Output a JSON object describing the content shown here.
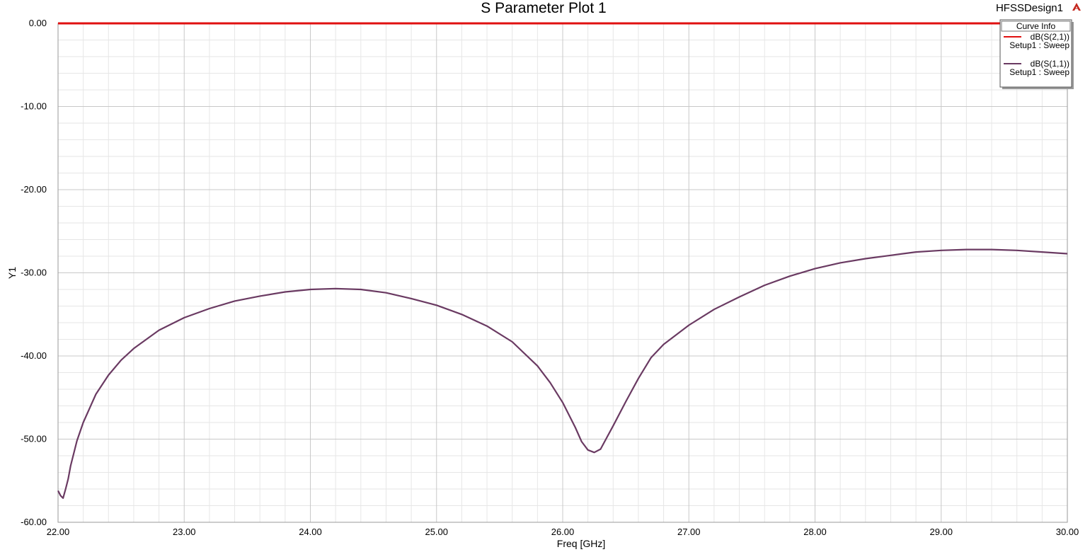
{
  "design_name": "HFSSDesign1",
  "logo_icon": "ansys-logo-icon",
  "colors": {
    "s21": "#e01010",
    "s11": "#6a3a62",
    "grid_major": "#c8c8c8",
    "grid_minor": "#e6e6e6"
  },
  "chart_data": {
    "type": "line",
    "title": "S Parameter Plot 1",
    "xlabel": "Freq [GHz]",
    "ylabel": "Y1",
    "xlim": [
      22.0,
      30.0
    ],
    "ylim": [
      -60.0,
      0.0
    ],
    "x_ticks": [
      "22.00",
      "23.00",
      "24.00",
      "25.00",
      "26.00",
      "27.00",
      "28.00",
      "29.00",
      "30.00"
    ],
    "y_ticks": [
      "0.00",
      "-10.00",
      "-20.00",
      "-30.00",
      "-40.00",
      "-50.00",
      "-60.00"
    ],
    "grid": true,
    "legend": {
      "title": "Curve Info",
      "placement": "top-right",
      "entries": [
        {
          "name": "dB(S(2,1))",
          "sub": "Setup1 : Sweep"
        },
        {
          "name": "dB(S(1,1))",
          "sub": "Setup1 : Sweep"
        }
      ]
    },
    "series": [
      {
        "name": "dB(S(2,1))",
        "x": [
          22.0,
          30.0
        ],
        "y": [
          0.0,
          0.0
        ]
      },
      {
        "name": "dB(S(1,1))",
        "x": [
          22.0,
          22.02,
          22.04,
          22.06,
          22.08,
          22.1,
          22.15,
          22.2,
          22.3,
          22.4,
          22.5,
          22.6,
          22.8,
          23.0,
          23.2,
          23.4,
          23.6,
          23.8,
          24.0,
          24.2,
          24.4,
          24.6,
          24.8,
          25.0,
          25.2,
          25.4,
          25.6,
          25.8,
          25.9,
          26.0,
          26.1,
          26.15,
          26.2,
          26.25,
          26.3,
          26.35,
          26.4,
          26.5,
          26.6,
          26.7,
          26.8,
          27.0,
          27.2,
          27.4,
          27.6,
          27.8,
          28.0,
          28.2,
          28.4,
          28.6,
          28.8,
          29.0,
          29.2,
          29.4,
          29.6,
          29.8,
          30.0
        ],
        "y": [
          -56.2,
          -56.8,
          -57.1,
          -56.0,
          -54.8,
          -53.2,
          -50.2,
          -48.0,
          -44.6,
          -42.3,
          -40.5,
          -39.1,
          -36.9,
          -35.4,
          -34.3,
          -33.4,
          -32.8,
          -32.3,
          -32.0,
          -31.9,
          -32.0,
          -32.4,
          -33.1,
          -33.9,
          -35.0,
          -36.4,
          -38.3,
          -41.2,
          -43.2,
          -45.6,
          -48.6,
          -50.3,
          -51.3,
          -51.6,
          -51.2,
          -49.8,
          -48.4,
          -45.5,
          -42.7,
          -40.2,
          -38.6,
          -36.3,
          -34.4,
          -32.9,
          -31.5,
          -30.4,
          -29.5,
          -28.8,
          -28.3,
          -27.9,
          -27.5,
          -27.3,
          -27.2,
          -27.2,
          -27.3,
          -27.5,
          -27.7
        ]
      }
    ]
  }
}
